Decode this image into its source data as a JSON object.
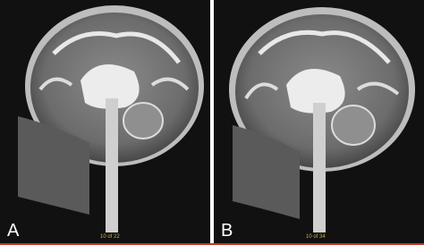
{
  "panels": [
    {
      "label": "A",
      "slice": "10 of 22"
    },
    {
      "label": "B",
      "slice": "10 of 34"
    }
  ]
}
